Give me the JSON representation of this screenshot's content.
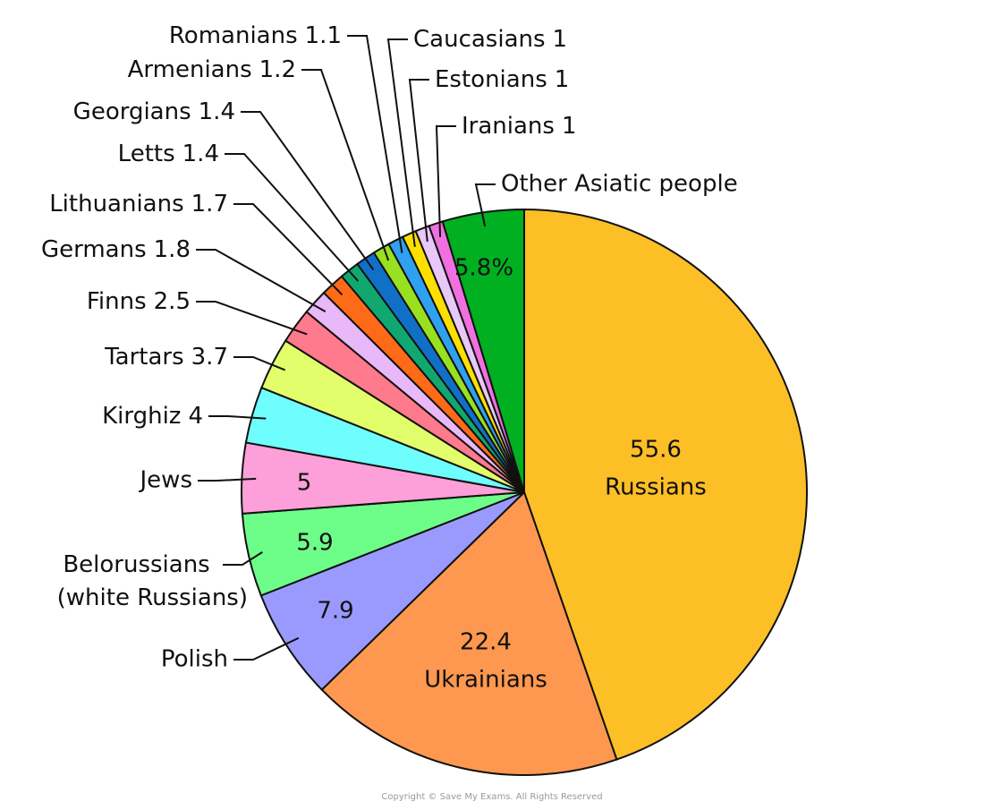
{
  "chart_data": {
    "type": "pie",
    "categories": [
      "Russians",
      "Ukrainians",
      "Polish",
      "Belorussians (white Russians)",
      "Jews",
      "Kirghiz",
      "Tartars",
      "Finns",
      "Germans",
      "Lithuanians",
      "Letts",
      "Georgians",
      "Armenians",
      "Romanians",
      "Caucasians",
      "Estonians",
      "Iranians",
      "Other Asiatic people"
    ],
    "values": [
      55.6,
      22.4,
      7.9,
      5.9,
      5,
      4,
      3.7,
      2.5,
      1.8,
      1.7,
      1.4,
      1.4,
      1.2,
      1.1,
      1,
      1,
      1,
      5.8
    ],
    "value_labels": [
      "55.6",
      "22.4",
      "7.9",
      "5.9",
      "5",
      "4",
      "3.7",
      "2.5",
      "1.8",
      "1.7",
      "1.4",
      "1.4",
      "1.2",
      "1.1",
      "1",
      "1",
      "1",
      "5.8%"
    ],
    "colors": [
      "#fdbf26",
      "#fe9850",
      "#9a9afe",
      "#6dfe8a",
      "#fda0d9",
      "#6ffefe",
      "#e2fe6a",
      "#fe7a8c",
      "#e8b8f8",
      "#fe6a18",
      "#10a870",
      "#1070c8",
      "#98e020",
      "#30a0f0",
      "#fee000",
      "#e8c8f8",
      "#f070e0",
      "#00b020"
    ]
  },
  "footer": "Copyright © Save My Exams. All Rights Reserved"
}
